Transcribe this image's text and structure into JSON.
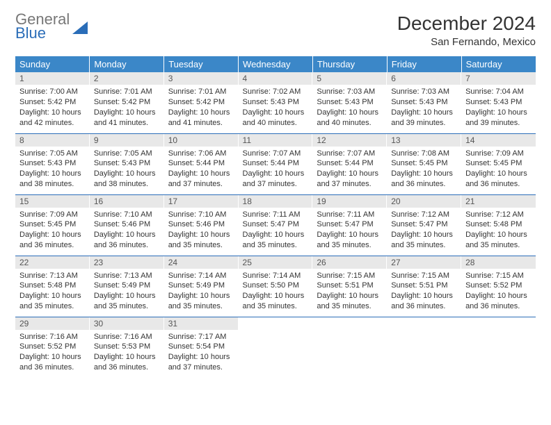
{
  "logo": {
    "line1": "General",
    "line2": "Blue"
  },
  "title": "December 2024",
  "subtitle": "San Fernando, Mexico",
  "colors": {
    "header_bg": "#3b87c8",
    "header_text": "#ffffff",
    "daynum_bg": "#e8e8e8",
    "row_divider": "#2a6db8",
    "logo_blue": "#2a6db8",
    "logo_gray": "#777777",
    "body_text": "#333333"
  },
  "typography": {
    "title_fontsize": 28,
    "subtitle_fontsize": 15,
    "header_fontsize": 13,
    "cell_fontsize": 11
  },
  "day_headers": [
    "Sunday",
    "Monday",
    "Tuesday",
    "Wednesday",
    "Thursday",
    "Friday",
    "Saturday"
  ],
  "weeks": [
    [
      {
        "n": "1",
        "sr": "7:00 AM",
        "ss": "5:42 PM",
        "dl": "10 hours and 42 minutes."
      },
      {
        "n": "2",
        "sr": "7:01 AM",
        "ss": "5:42 PM",
        "dl": "10 hours and 41 minutes."
      },
      {
        "n": "3",
        "sr": "7:01 AM",
        "ss": "5:42 PM",
        "dl": "10 hours and 41 minutes."
      },
      {
        "n": "4",
        "sr": "7:02 AM",
        "ss": "5:43 PM",
        "dl": "10 hours and 40 minutes."
      },
      {
        "n": "5",
        "sr": "7:03 AM",
        "ss": "5:43 PM",
        "dl": "10 hours and 40 minutes."
      },
      {
        "n": "6",
        "sr": "7:03 AM",
        "ss": "5:43 PM",
        "dl": "10 hours and 39 minutes."
      },
      {
        "n": "7",
        "sr": "7:04 AM",
        "ss": "5:43 PM",
        "dl": "10 hours and 39 minutes."
      }
    ],
    [
      {
        "n": "8",
        "sr": "7:05 AM",
        "ss": "5:43 PM",
        "dl": "10 hours and 38 minutes."
      },
      {
        "n": "9",
        "sr": "7:05 AM",
        "ss": "5:43 PM",
        "dl": "10 hours and 38 minutes."
      },
      {
        "n": "10",
        "sr": "7:06 AM",
        "ss": "5:44 PM",
        "dl": "10 hours and 37 minutes."
      },
      {
        "n": "11",
        "sr": "7:07 AM",
        "ss": "5:44 PM",
        "dl": "10 hours and 37 minutes."
      },
      {
        "n": "12",
        "sr": "7:07 AM",
        "ss": "5:44 PM",
        "dl": "10 hours and 37 minutes."
      },
      {
        "n": "13",
        "sr": "7:08 AM",
        "ss": "5:45 PM",
        "dl": "10 hours and 36 minutes."
      },
      {
        "n": "14",
        "sr": "7:09 AM",
        "ss": "5:45 PM",
        "dl": "10 hours and 36 minutes."
      }
    ],
    [
      {
        "n": "15",
        "sr": "7:09 AM",
        "ss": "5:45 PM",
        "dl": "10 hours and 36 minutes."
      },
      {
        "n": "16",
        "sr": "7:10 AM",
        "ss": "5:46 PM",
        "dl": "10 hours and 36 minutes."
      },
      {
        "n": "17",
        "sr": "7:10 AM",
        "ss": "5:46 PM",
        "dl": "10 hours and 35 minutes."
      },
      {
        "n": "18",
        "sr": "7:11 AM",
        "ss": "5:47 PM",
        "dl": "10 hours and 35 minutes."
      },
      {
        "n": "19",
        "sr": "7:11 AM",
        "ss": "5:47 PM",
        "dl": "10 hours and 35 minutes."
      },
      {
        "n": "20",
        "sr": "7:12 AM",
        "ss": "5:47 PM",
        "dl": "10 hours and 35 minutes."
      },
      {
        "n": "21",
        "sr": "7:12 AM",
        "ss": "5:48 PM",
        "dl": "10 hours and 35 minutes."
      }
    ],
    [
      {
        "n": "22",
        "sr": "7:13 AM",
        "ss": "5:48 PM",
        "dl": "10 hours and 35 minutes."
      },
      {
        "n": "23",
        "sr": "7:13 AM",
        "ss": "5:49 PM",
        "dl": "10 hours and 35 minutes."
      },
      {
        "n": "24",
        "sr": "7:14 AM",
        "ss": "5:49 PM",
        "dl": "10 hours and 35 minutes."
      },
      {
        "n": "25",
        "sr": "7:14 AM",
        "ss": "5:50 PM",
        "dl": "10 hours and 35 minutes."
      },
      {
        "n": "26",
        "sr": "7:15 AM",
        "ss": "5:51 PM",
        "dl": "10 hours and 35 minutes."
      },
      {
        "n": "27",
        "sr": "7:15 AM",
        "ss": "5:51 PM",
        "dl": "10 hours and 36 minutes."
      },
      {
        "n": "28",
        "sr": "7:15 AM",
        "ss": "5:52 PM",
        "dl": "10 hours and 36 minutes."
      }
    ],
    [
      {
        "n": "29",
        "sr": "7:16 AM",
        "ss": "5:52 PM",
        "dl": "10 hours and 36 minutes."
      },
      {
        "n": "30",
        "sr": "7:16 AM",
        "ss": "5:53 PM",
        "dl": "10 hours and 36 minutes."
      },
      {
        "n": "31",
        "sr": "7:17 AM",
        "ss": "5:54 PM",
        "dl": "10 hours and 37 minutes."
      },
      null,
      null,
      null,
      null
    ]
  ],
  "labels": {
    "sunrise": "Sunrise:",
    "sunset": "Sunset:",
    "daylight": "Daylight:"
  }
}
